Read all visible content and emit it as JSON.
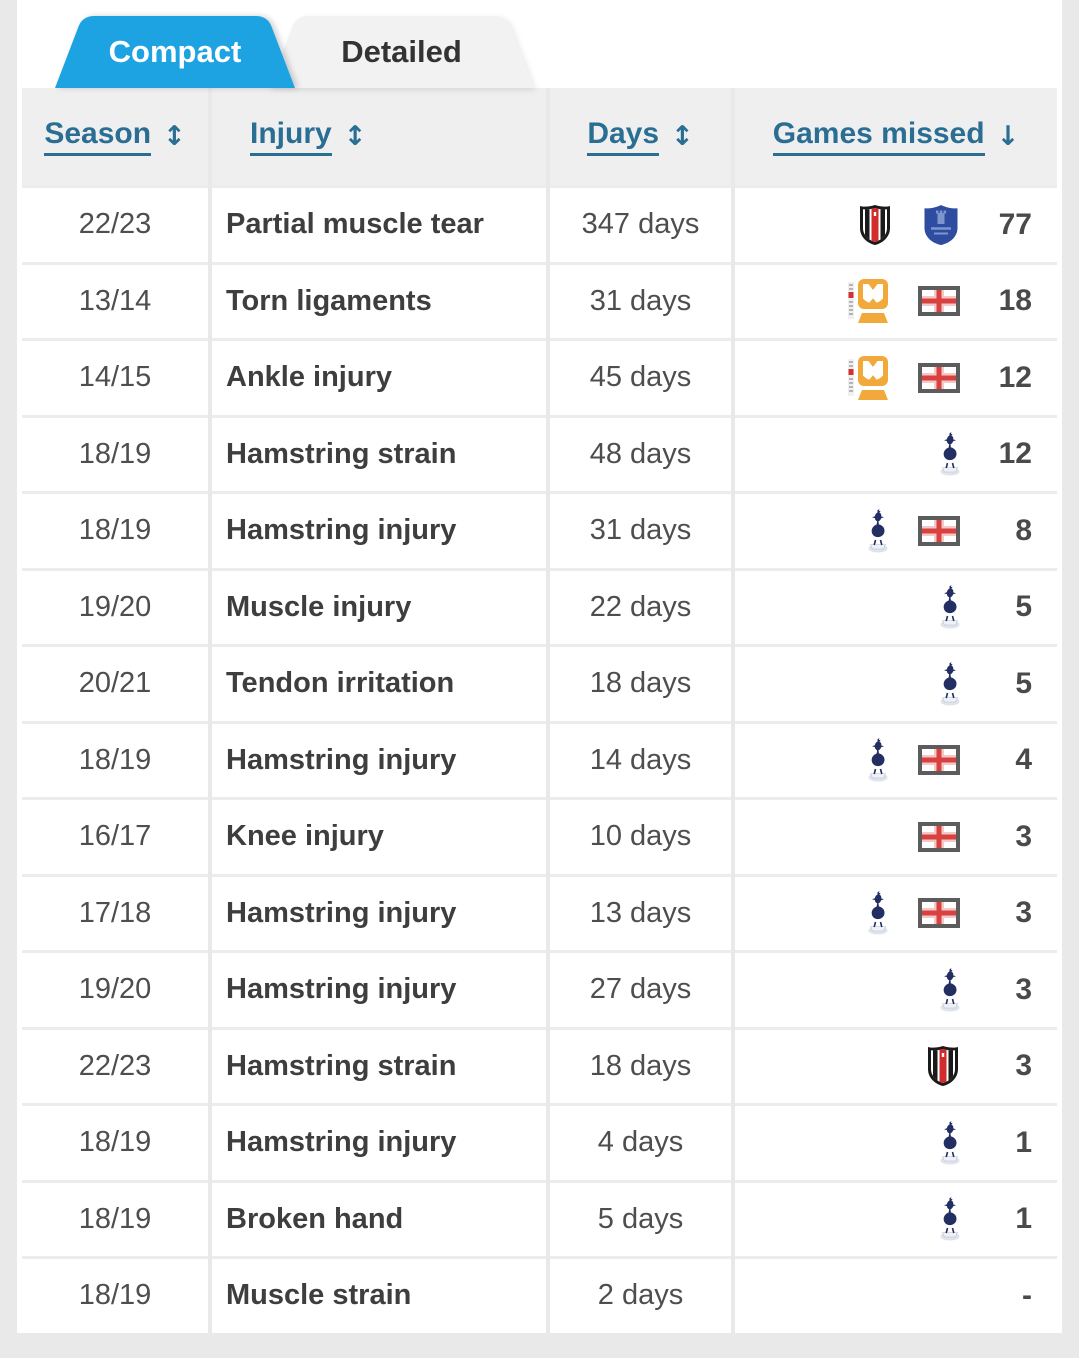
{
  "tabs": [
    {
      "label": "Compact",
      "active": true
    },
    {
      "label": "Detailed",
      "active": false
    }
  ],
  "colors": {
    "active_tab_blue": "#1da3e2",
    "header_link_blue": "#2a6e94",
    "england_red": "#d94040",
    "tottenham_navy": "#232f63",
    "everton_blue": "#2f4da0",
    "mkdons_gold": "#f2a93b"
  },
  "table": {
    "columns": [
      {
        "label": "Season",
        "sort_icon": "↕"
      },
      {
        "label": "Injury",
        "sort_icon": "↕"
      },
      {
        "label": "Days",
        "sort_icon": "↕"
      },
      {
        "label": "Games missed",
        "sort_icon": "↓"
      }
    ],
    "rows": [
      {
        "season": "22/23",
        "injury": "Partial muscle tear",
        "days": "347 days",
        "clubs": [
          "besiktas",
          "everton"
        ],
        "games_missed": "77"
      },
      {
        "season": "13/14",
        "injury": "Torn ligaments",
        "days": "31 days",
        "clubs": [
          "mk-dons",
          "england"
        ],
        "games_missed": "18"
      },
      {
        "season": "14/15",
        "injury": "Ankle injury",
        "days": "45 days",
        "clubs": [
          "mk-dons",
          "england"
        ],
        "games_missed": "12"
      },
      {
        "season": "18/19",
        "injury": "Hamstring strain",
        "days": "48 days",
        "clubs": [
          "tottenham"
        ],
        "games_missed": "12"
      },
      {
        "season": "18/19",
        "injury": "Hamstring injury",
        "days": "31 days",
        "clubs": [
          "tottenham",
          "england"
        ],
        "games_missed": "8"
      },
      {
        "season": "19/20",
        "injury": "Muscle injury",
        "days": "22 days",
        "clubs": [
          "tottenham"
        ],
        "games_missed": "5"
      },
      {
        "season": "20/21",
        "injury": "Tendon irritation",
        "days": "18 days",
        "clubs": [
          "tottenham"
        ],
        "games_missed": "5"
      },
      {
        "season": "18/19",
        "injury": "Hamstring injury",
        "days": "14 days",
        "clubs": [
          "tottenham",
          "england"
        ],
        "games_missed": "4"
      },
      {
        "season": "16/17",
        "injury": "Knee injury",
        "days": "10 days",
        "clubs": [
          "england"
        ],
        "games_missed": "3"
      },
      {
        "season": "17/18",
        "injury": "Hamstring injury",
        "days": "13 days",
        "clubs": [
          "tottenham",
          "england"
        ],
        "games_missed": "3"
      },
      {
        "season": "19/20",
        "injury": "Hamstring injury",
        "days": "27 days",
        "clubs": [
          "tottenham"
        ],
        "games_missed": "3"
      },
      {
        "season": "22/23",
        "injury": "Hamstring strain",
        "days": "18 days",
        "clubs": [
          "besiktas"
        ],
        "games_missed": "3"
      },
      {
        "season": "18/19",
        "injury": "Hamstring injury",
        "days": "4 days",
        "clubs": [
          "tottenham"
        ],
        "games_missed": "1"
      },
      {
        "season": "18/19",
        "injury": "Broken hand",
        "days": "5 days",
        "clubs": [
          "tottenham"
        ],
        "games_missed": "1"
      },
      {
        "season": "18/19",
        "injury": "Muscle strain",
        "days": "2 days",
        "clubs": [],
        "games_missed": "-"
      }
    ]
  }
}
